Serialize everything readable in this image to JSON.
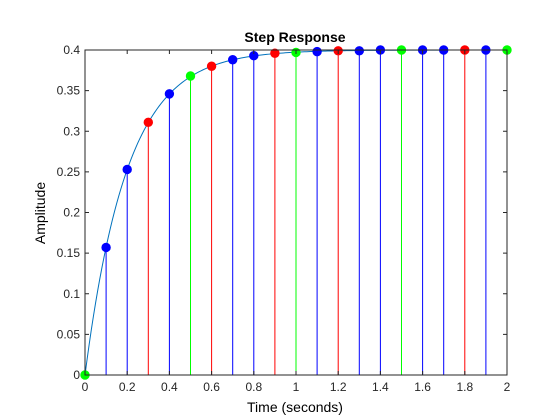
{
  "chart_data": {
    "type": "line",
    "title": "Step Response",
    "xlabel": "Time (seconds)",
    "ylabel": "Amplitude",
    "xlim": [
      0,
      2
    ],
    "ylim": [
      0,
      0.4
    ],
    "x_ticks": [
      0,
      0.2,
      0.4,
      0.6,
      0.8,
      1,
      1.2,
      1.4,
      1.6,
      1.8,
      2
    ],
    "x_tick_labels": [
      "0",
      "0.2",
      "0.4",
      "0.6",
      "0.8",
      "1",
      "1.2",
      "1.4",
      "1.6",
      "1.8",
      "2"
    ],
    "y_ticks": [
      0,
      0.05,
      0.1,
      0.15,
      0.2,
      0.25,
      0.3,
      0.35,
      0.4
    ],
    "y_tick_labels": [
      "0",
      "0.05",
      "0.1",
      "0.15",
      "0.2",
      "0.25",
      "0.3",
      "0.35",
      "0.4"
    ],
    "grid": false,
    "steady_state_value": 0.4,
    "curve": {
      "color": "#0072bd",
      "gain": 0.4,
      "time_constant": 0.2
    },
    "stems": [
      {
        "x": 0.0,
        "y": 0.0,
        "color": "#00ff00"
      },
      {
        "x": 0.1,
        "y": 0.157,
        "color": "#0000ff"
      },
      {
        "x": 0.2,
        "y": 0.253,
        "color": "#0000ff"
      },
      {
        "x": 0.3,
        "y": 0.311,
        "color": "#ff0000"
      },
      {
        "x": 0.4,
        "y": 0.346,
        "color": "#0000ff"
      },
      {
        "x": 0.5,
        "y": 0.368,
        "color": "#00ff00"
      },
      {
        "x": 0.6,
        "y": 0.38,
        "color": "#ff0000"
      },
      {
        "x": 0.7,
        "y": 0.388,
        "color": "#0000ff"
      },
      {
        "x": 0.8,
        "y": 0.393,
        "color": "#0000ff"
      },
      {
        "x": 0.9,
        "y": 0.396,
        "color": "#ff0000"
      },
      {
        "x": 1.0,
        "y": 0.397,
        "color": "#00ff00"
      },
      {
        "x": 1.1,
        "y": 0.398,
        "color": "#0000ff"
      },
      {
        "x": 1.2,
        "y": 0.399,
        "color": "#ff0000"
      },
      {
        "x": 1.3,
        "y": 0.399,
        "color": "#0000ff"
      },
      {
        "x": 1.4,
        "y": 0.4,
        "color": "#0000ff"
      },
      {
        "x": 1.5,
        "y": 0.4,
        "color": "#00ff00"
      },
      {
        "x": 1.6,
        "y": 0.4,
        "color": "#0000ff"
      },
      {
        "x": 1.7,
        "y": 0.4,
        "color": "#0000ff"
      },
      {
        "x": 1.8,
        "y": 0.4,
        "color": "#ff0000"
      },
      {
        "x": 1.9,
        "y": 0.4,
        "color": "#0000ff"
      },
      {
        "x": 2.0,
        "y": 0.4,
        "color": "#00ff00"
      }
    ]
  }
}
